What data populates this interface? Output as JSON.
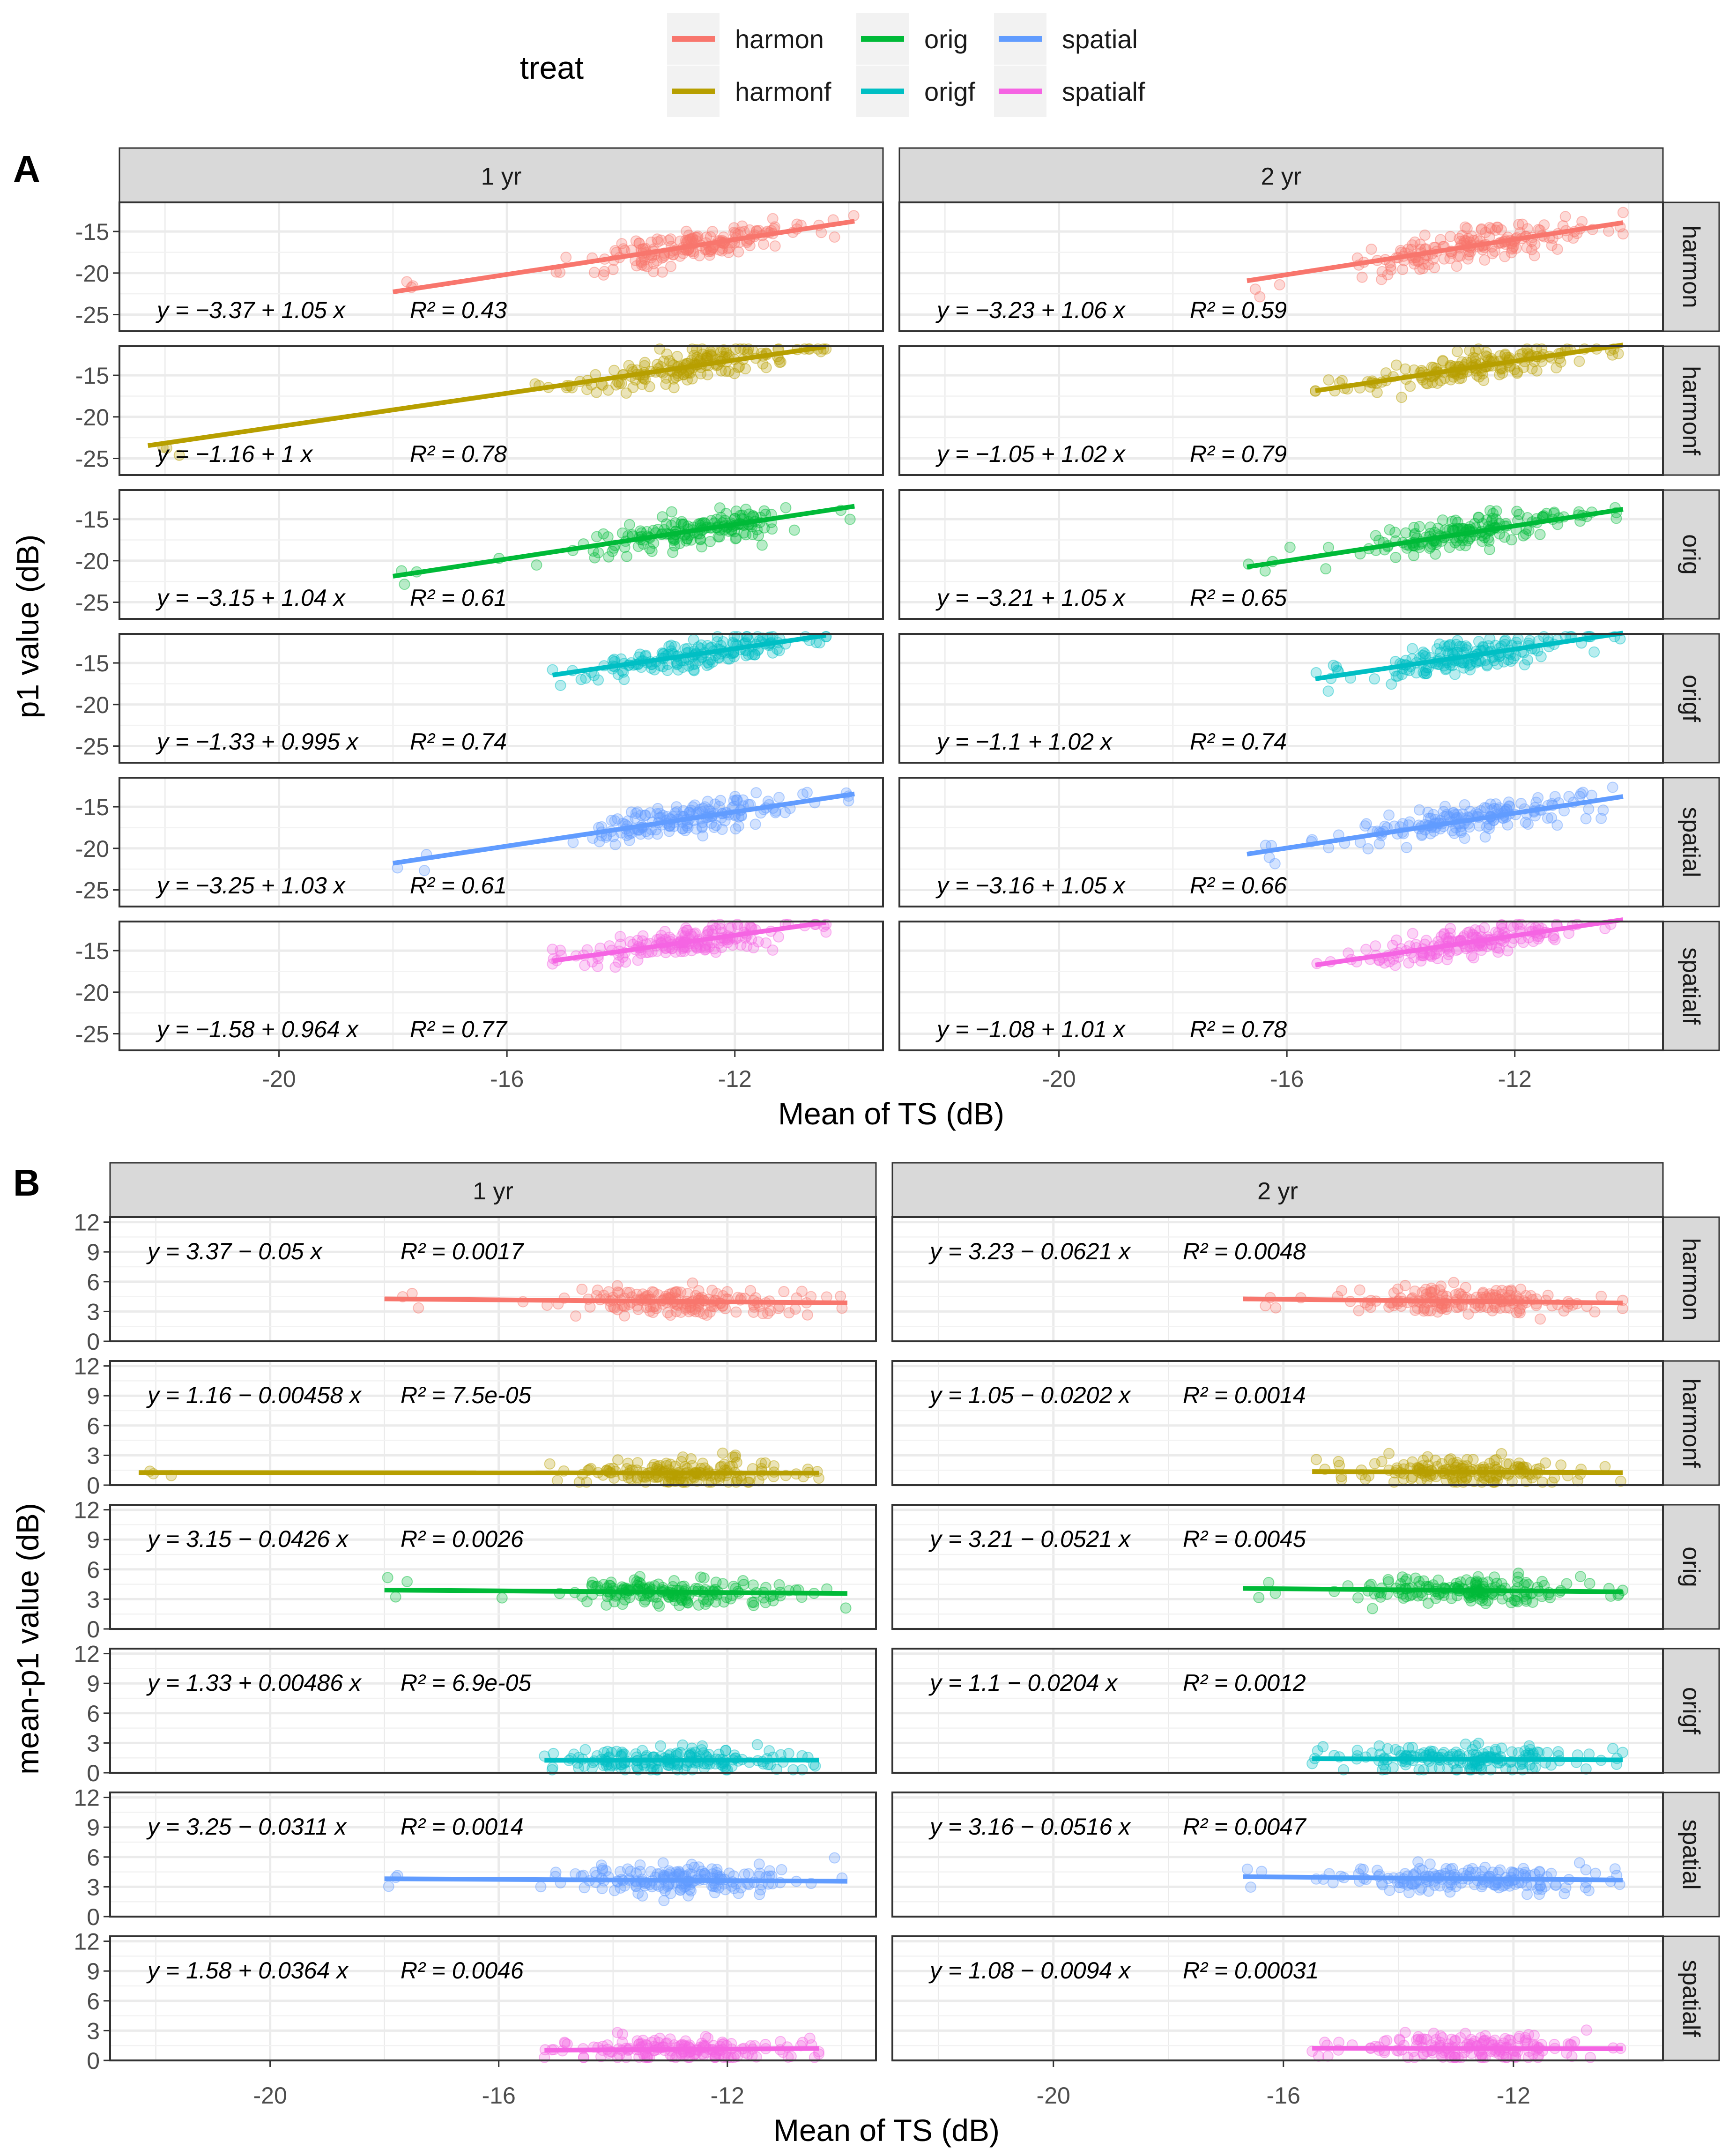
{
  "legend": {
    "title": "treat",
    "entries": [
      {
        "label": "harmon",
        "color": "#F8766D"
      },
      {
        "label": "harmonf",
        "color": "#B79F00"
      },
      {
        "label": "orig",
        "color": "#00BA38"
      },
      {
        "label": "origf",
        "color": "#00BFC4"
      },
      {
        "label": "spatial",
        "color": "#619CFF"
      },
      {
        "label": "spatialf",
        "color": "#F564E3"
      }
    ]
  },
  "chart_data": [
    {
      "panel": "A",
      "type": "scatter",
      "xlabel": "Mean of TS (dB)",
      "ylabel": "p1 value (dB)",
      "xlim": [
        -22.8,
        -9.4
      ],
      "ylim": [
        -27,
        -11.5
      ],
      "xticks": [
        -20,
        -16,
        -12
      ],
      "yticks": [
        -15,
        -20,
        -25
      ],
      "columns": [
        "1 yr",
        "2 yr"
      ],
      "rows": [
        "harmon",
        "harmonf",
        "orig",
        "origf",
        "spatial",
        "spatialf"
      ],
      "facets": [
        {
          "col": "1 yr",
          "row": "harmon",
          "intercept": -3.37,
          "slope": 1.05,
          "r2": "0.43",
          "eq_text": "y = −3.37 + 1.05 x",
          "r2_text": "R² = 0.43",
          "xmin": -18,
          "xmax": -9.9
        },
        {
          "col": "2 yr",
          "row": "harmon",
          "intercept": -3.23,
          "slope": 1.06,
          "r2": "0.59",
          "eq_text": "y = −3.23 + 1.06 x",
          "r2_text": "R² = 0.59",
          "xmin": -16.7,
          "xmax": -10.1
        },
        {
          "col": "1 yr",
          "row": "harmonf",
          "intercept": -1.16,
          "slope": 1,
          "r2": "0.78",
          "eq_text": "y = −1.16 + 1 x",
          "r2_text": "R² = 0.78",
          "xmin": -22.3,
          "xmax": -10.4
        },
        {
          "col": "2 yr",
          "row": "harmonf",
          "intercept": -1.05,
          "slope": 1.02,
          "r2": "0.79",
          "eq_text": "y = −1.05 + 1.02 x",
          "r2_text": "R² = 0.79",
          "xmin": -15.5,
          "xmax": -10.1
        },
        {
          "col": "1 yr",
          "row": "orig",
          "intercept": -3.15,
          "slope": 1.04,
          "r2": "0.61",
          "eq_text": "y = −3.15 + 1.04 x",
          "r2_text": "R² = 0.61",
          "xmin": -18,
          "xmax": -9.9
        },
        {
          "col": "2 yr",
          "row": "orig",
          "intercept": -3.21,
          "slope": 1.05,
          "r2": "0.65",
          "eq_text": "y = −3.21 + 1.05 x",
          "r2_text": "R² = 0.65",
          "xmin": -16.7,
          "xmax": -10.1
        },
        {
          "col": "1 yr",
          "row": "origf",
          "intercept": -1.33,
          "slope": 0.995,
          "r2": "0.74",
          "eq_text": "y = −1.33 + 0.995 x",
          "r2_text": "R² = 0.74",
          "xmin": -15.2,
          "xmax": -10.4
        },
        {
          "col": "2 yr",
          "row": "origf",
          "intercept": -1.1,
          "slope": 1.02,
          "r2": "0.74",
          "eq_text": "y = −1.1 + 1.02 x",
          "r2_text": "R² = 0.74",
          "xmin": -15.5,
          "xmax": -10.1
        },
        {
          "col": "1 yr",
          "row": "spatial",
          "intercept": -3.25,
          "slope": 1.03,
          "r2": "0.61",
          "eq_text": "y = −3.25 + 1.03 x",
          "r2_text": "R² = 0.61",
          "xmin": -18,
          "xmax": -9.9
        },
        {
          "col": "2 yr",
          "row": "spatial",
          "intercept": -3.16,
          "slope": 1.05,
          "r2": "0.66",
          "eq_text": "y = −3.16 + 1.05 x",
          "r2_text": "R² = 0.66",
          "xmin": -16.7,
          "xmax": -10.1
        },
        {
          "col": "1 yr",
          "row": "spatialf",
          "intercept": -1.58,
          "slope": 0.964,
          "r2": "0.77",
          "eq_text": "y = −1.58 + 0.964 x",
          "r2_text": "R² = 0.77",
          "xmin": -15.2,
          "xmax": -10.4
        },
        {
          "col": "2 yr",
          "row": "spatialf",
          "intercept": -1.08,
          "slope": 1.01,
          "r2": "0.78",
          "eq_text": "y = −1.08 + 1.01 x",
          "r2_text": "R² = 0.78",
          "xmin": -15.5,
          "xmax": -10.1
        }
      ]
    },
    {
      "panel": "B",
      "type": "scatter",
      "xlabel": "Mean of TS (dB)",
      "ylabel": "mean-p1 value (dB)",
      "xlim": [
        -22.8,
        -9.4
      ],
      "ylim": [
        0,
        12.5
      ],
      "xticks": [
        -20,
        -16,
        -12
      ],
      "yticks": [
        0,
        3,
        6,
        9,
        12
      ],
      "columns": [
        "1 yr",
        "2 yr"
      ],
      "rows": [
        "harmon",
        "harmonf",
        "orig",
        "origf",
        "spatial",
        "spatialf"
      ],
      "facets": [
        {
          "col": "1 yr",
          "row": "harmon",
          "intercept": 3.37,
          "slope": -0.05,
          "r2": "0.0017",
          "eq_text": "y = 3.37 − 0.05 x",
          "r2_text": "R² = 0.0017",
          "xmin": -18,
          "xmax": -9.9
        },
        {
          "col": "2 yr",
          "row": "harmon",
          "intercept": 3.23,
          "slope": -0.0621,
          "r2": "0.0048",
          "eq_text": "y = 3.23 − 0.0621 x",
          "r2_text": "R² = 0.0048",
          "xmin": -16.7,
          "xmax": -10.1
        },
        {
          "col": "1 yr",
          "row": "harmonf",
          "intercept": 1.16,
          "slope": -0.00458,
          "r2": "7.5e-05",
          "eq_text": "y = 1.16 − 0.00458 x",
          "r2_text": "R² = 7.5e-05",
          "xmin": -22.3,
          "xmax": -10.4
        },
        {
          "col": "2 yr",
          "row": "harmonf",
          "intercept": 1.05,
          "slope": -0.0202,
          "r2": "0.0014",
          "eq_text": "y = 1.05 − 0.0202 x",
          "r2_text": "R² = 0.0014",
          "xmin": -15.5,
          "xmax": -10.1
        },
        {
          "col": "1 yr",
          "row": "orig",
          "intercept": 3.15,
          "slope": -0.0426,
          "r2": "0.0026",
          "eq_text": "y = 3.15 − 0.0426 x",
          "r2_text": "R² = 0.0026",
          "xmin": -18,
          "xmax": -9.9
        },
        {
          "col": "2 yr",
          "row": "orig",
          "intercept": 3.21,
          "slope": -0.0521,
          "r2": "0.0045",
          "eq_text": "y = 3.21 − 0.0521 x",
          "r2_text": "R² = 0.0045",
          "xmin": -16.7,
          "xmax": -10.1
        },
        {
          "col": "1 yr",
          "row": "origf",
          "intercept": 1.33,
          "slope": 0.00486,
          "r2": "6.9e-05",
          "eq_text": "y = 1.33 + 0.00486 x",
          "r2_text": "R² = 6.9e-05",
          "xmin": -15.2,
          "xmax": -10.4
        },
        {
          "col": "2 yr",
          "row": "origf",
          "intercept": 1.1,
          "slope": -0.0204,
          "r2": "0.0012",
          "eq_text": "y = 1.1 − 0.0204 x",
          "r2_text": "R² = 0.0012",
          "xmin": -15.5,
          "xmax": -10.1
        },
        {
          "col": "1 yr",
          "row": "spatial",
          "intercept": 3.25,
          "slope": -0.0311,
          "r2": "0.0014",
          "eq_text": "y = 3.25 − 0.0311 x",
          "r2_text": "R² = 0.0014",
          "xmin": -18,
          "xmax": -9.9
        },
        {
          "col": "2 yr",
          "row": "spatial",
          "intercept": 3.16,
          "slope": -0.0516,
          "r2": "0.0047",
          "eq_text": "y = 3.16 − 0.0516 x",
          "r2_text": "R² = 0.0047",
          "xmin": -16.7,
          "xmax": -10.1
        },
        {
          "col": "1 yr",
          "row": "spatialf",
          "intercept": 1.58,
          "slope": 0.0364,
          "r2": "0.0046",
          "eq_text": "y = 1.58 + 0.0364 x",
          "r2_text": "R² = 0.0046",
          "xmin": -15.2,
          "xmax": -10.4
        },
        {
          "col": "2 yr",
          "row": "spatialf",
          "intercept": 1.08,
          "slope": -0.0094,
          "r2": "0.00031",
          "eq_text": "y = 1.08 − 0.0094 x",
          "r2_text": "R² = 0.00031",
          "xmin": -15.5,
          "xmax": -10.1
        }
      ]
    }
  ]
}
